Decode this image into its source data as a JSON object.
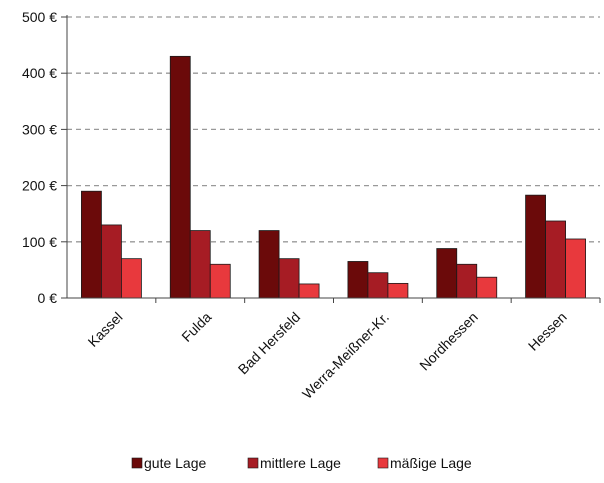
{
  "chart_data": {
    "type": "bar",
    "title": "",
    "xlabel": "",
    "ylabel": "",
    "categories": [
      "Kassel",
      "Fulda",
      "Bad Hersfeld",
      "Werra-Meißner-Kr.",
      "Nordhessen",
      "Hessen"
    ],
    "series": [
      {
        "name": "gute Lage",
        "color": "#6b0a0a",
        "values": [
          190,
          430,
          120,
          65,
          88,
          183
        ]
      },
      {
        "name": "mittlere Lage",
        "color": "#a61c24",
        "values": [
          130,
          120,
          70,
          45,
          60,
          137
        ]
      },
      {
        "name": "mäßige Lage",
        "color": "#e8393d",
        "values": [
          70,
          60,
          25,
          26,
          37,
          105
        ]
      }
    ],
    "ylim": [
      0,
      500
    ],
    "yticks": [
      0,
      100,
      200,
      300,
      400,
      500
    ],
    "ytick_labels": [
      "0 €",
      "100 €",
      "200 €",
      "300 €",
      "400 €",
      "500 €"
    ],
    "grid": true,
    "legend_position": "bottom"
  }
}
